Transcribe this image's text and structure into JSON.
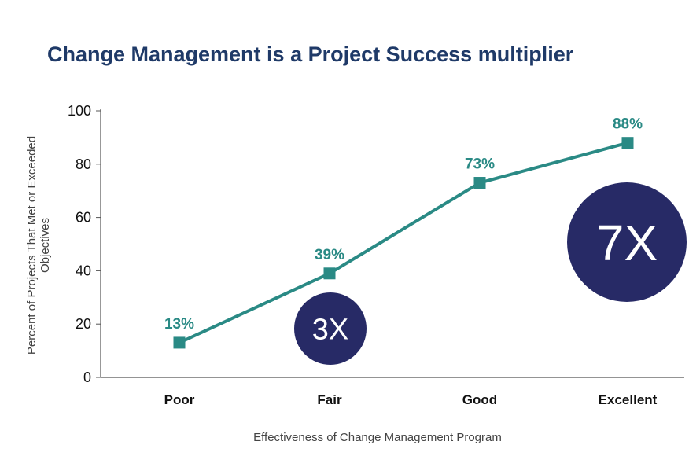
{
  "colors": {
    "title": "#1f3a68",
    "series": "#2a8a85",
    "bubble": "#272a66",
    "axis": "#555555"
  },
  "chart_data": {
    "type": "line",
    "title": "Change Management is a Project Success multiplier",
    "xlabel": "Effectiveness of Change Management Program",
    "ylabel": "Percent of Projects That Met or Exceeded Objectives",
    "categories": [
      "Poor",
      "Fair",
      "Good",
      "Excellent"
    ],
    "series": [
      {
        "values": [
          13,
          39,
          73,
          88
        ]
      }
    ],
    "data_labels": [
      "13%",
      "39%",
      "73%",
      "88%"
    ],
    "ylim": [
      0,
      100
    ],
    "yticks": [
      0,
      20,
      40,
      60,
      80,
      100
    ],
    "grid": false,
    "annotations": [
      {
        "text": "3X",
        "near_category": "Fair"
      },
      {
        "text": "7X",
        "near_category": "Excellent"
      }
    ]
  }
}
